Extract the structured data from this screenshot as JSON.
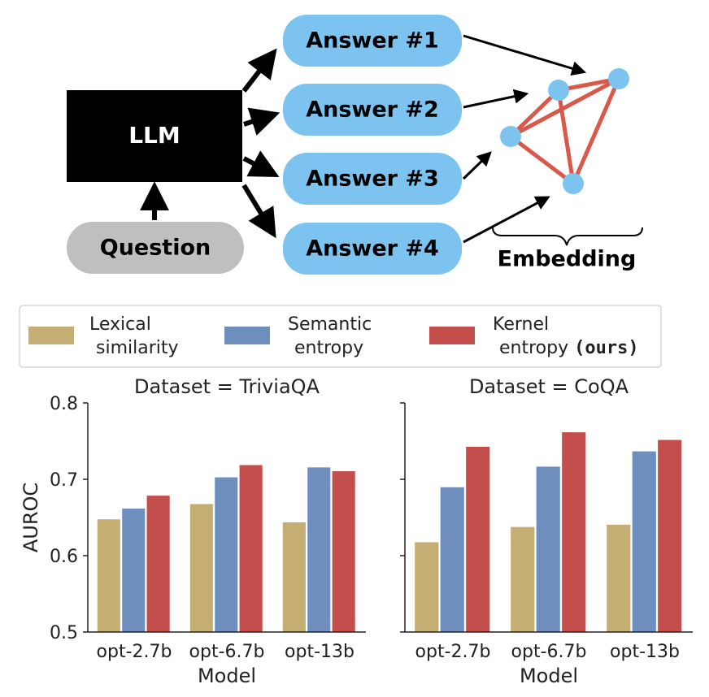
{
  "diagram": {
    "llm_label": "LLM",
    "question_label": "Question",
    "answers": [
      "Answer #1",
      "Answer #2",
      "Answer #3",
      "Answer #4"
    ],
    "embedding_label": "Embedding"
  },
  "legend": {
    "items": [
      {
        "line1": "Lexical",
        "line2": "similarity",
        "line2_bold": ""
      },
      {
        "line1": "Semantic",
        "line2": "entropy",
        "line2_bold": ""
      },
      {
        "line1": "Kernel",
        "line2": "entropy ",
        "line2_bold": "(ours)"
      }
    ]
  },
  "colors": {
    "lexical": "#c4ae73",
    "semantic": "#6e8fbe",
    "kernel": "#c44e4b",
    "node": "#7cc3ef",
    "edge": "#d9584a",
    "llm_box": "#000000",
    "question_box": "#bfbfbf"
  },
  "chart_data": [
    {
      "type": "bar",
      "title": "Dataset = TriviaQA",
      "xlabel": "Model",
      "ylabel": "AUROC",
      "ylim": [
        0.5,
        0.8
      ],
      "yticks": [
        "0.5",
        "0.6",
        "0.7",
        "0.8"
      ],
      "categories": [
        "opt-2.7b",
        "opt-6.7b",
        "opt-13b"
      ],
      "series": [
        {
          "name": "Lexical similarity",
          "values": [
            0.648,
            0.668,
            0.644
          ]
        },
        {
          "name": "Semantic entropy",
          "values": [
            0.662,
            0.703,
            0.716
          ]
        },
        {
          "name": "Kernel entropy (ours)",
          "values": [
            0.679,
            0.719,
            0.711
          ]
        }
      ]
    },
    {
      "type": "bar",
      "title": "Dataset = CoQA",
      "xlabel": "Model",
      "ylabel": "",
      "ylim": [
        0.5,
        0.8
      ],
      "yticks": [
        "0.5",
        "0.6",
        "0.7",
        "0.8"
      ],
      "categories": [
        "opt-2.7b",
        "opt-6.7b",
        "opt-13b"
      ],
      "series": [
        {
          "name": "Lexical similarity",
          "values": [
            0.618,
            0.638,
            0.641
          ]
        },
        {
          "name": "Semantic entropy",
          "values": [
            0.69,
            0.717,
            0.737
          ]
        },
        {
          "name": "Kernel entropy (ours)",
          "values": [
            0.743,
            0.762,
            0.752
          ]
        }
      ]
    }
  ]
}
